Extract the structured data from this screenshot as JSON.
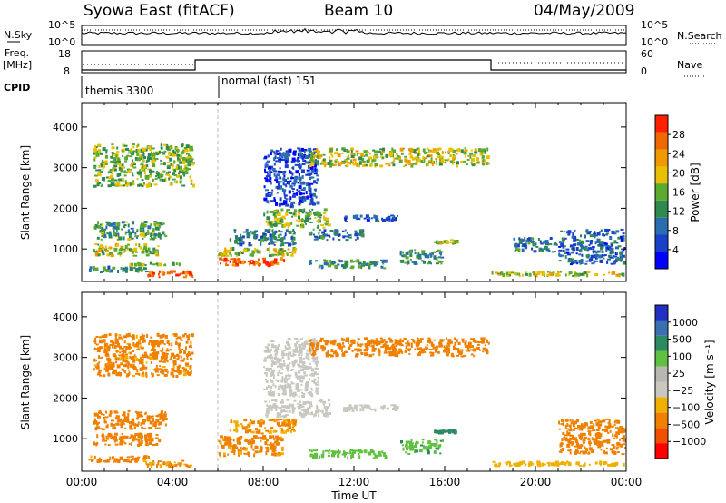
{
  "header": {
    "station": "Syowa East (fitACF)",
    "beam": "Beam 10",
    "date": "04/May/2009"
  },
  "strip_labels": {
    "nsky": "N.Sky",
    "nsky_top": "10^5",
    "nsky_bottom": "10^0",
    "nsearch": "N.Search",
    "nsearch_top": "10^5",
    "nsearch_bottom": "10^0",
    "freq_line1": "Freq.",
    "freq_line2": "[MHz]",
    "freq_top": "18",
    "freq_bottom": "8",
    "nave": "Nave",
    "nave_top": "60",
    "nave_bottom": "0",
    "cpid": "CPID"
  },
  "cpid_segments": [
    {
      "label": "themis 3300",
      "start_h": 0,
      "end_h": 6
    },
    {
      "label": "normal (fast) 151",
      "start_h": 6,
      "end_h": 24
    }
  ],
  "chart_data": [
    {
      "type": "heatmap",
      "panel": "power",
      "ylabel": "Slant Range [km]",
      "xlabel": "Time UT",
      "xlim": [
        0,
        24
      ],
      "ylim": [
        200,
        4600
      ],
      "xticks": [
        "00:00",
        "04:00",
        "08:00",
        "12:00",
        "16:00",
        "20:00",
        "00:00"
      ],
      "yticks": [
        1000,
        2000,
        3000,
        4000
      ],
      "colorbar": {
        "label": "Power [dB]",
        "ticks": [
          "28",
          "24",
          "20",
          "16",
          "12",
          "8",
          "4"
        ],
        "colors": [
          "#0000ff",
          "#1840c8",
          "#2a6cb0",
          "#2f8a4f",
          "#5aaa30",
          "#e8c000",
          "#f09a00",
          "#f06800",
          "#ff2000"
        ]
      },
      "echo_regions": [
        {
          "t0": 0.5,
          "t1": 3.8,
          "r0": 1200,
          "r1": 1700,
          "value": 14
        },
        {
          "t0": 0.5,
          "t1": 3.5,
          "r0": 800,
          "r1": 1150,
          "value": 18
        },
        {
          "t0": 0.3,
          "t1": 3.0,
          "r0": 400,
          "r1": 600,
          "value": 12
        },
        {
          "t0": 2.8,
          "t1": 5.0,
          "r0": 280,
          "r1": 480,
          "value": 28
        },
        {
          "t0": 2.0,
          "t1": 4.5,
          "r0": 560,
          "r1": 680,
          "value": 16
        },
        {
          "t0": 6.0,
          "t1": 9.0,
          "r0": 550,
          "r1": 800,
          "value": 28
        },
        {
          "t0": 6.0,
          "t1": 9.5,
          "r0": 800,
          "r1": 1050,
          "value": 18
        },
        {
          "t0": 6.5,
          "t1": 9.5,
          "r0": 1050,
          "r1": 1500,
          "value": 10
        },
        {
          "t0": 8.0,
          "t1": 11.0,
          "r0": 1500,
          "r1": 2000,
          "value": 16
        },
        {
          "t0": 8.0,
          "t1": 10.5,
          "r0": 2000,
          "r1": 3500,
          "value": 6
        },
        {
          "t0": 11.5,
          "t1": 14.0,
          "r0": 1650,
          "r1": 1850,
          "value": 8
        },
        {
          "t0": 10.0,
          "t1": 12.5,
          "r0": 1200,
          "r1": 1500,
          "value": 10
        },
        {
          "t0": 10.0,
          "t1": 13.5,
          "r0": 500,
          "r1": 750,
          "value": 12
        },
        {
          "t0": 14.0,
          "t1": 16.0,
          "r0": 600,
          "r1": 1000,
          "value": 12
        },
        {
          "t0": 15.5,
          "t1": 16.7,
          "r0": 1100,
          "r1": 1250,
          "value": 18
        },
        {
          "t0": 18.0,
          "t1": 24.0,
          "r0": 300,
          "r1": 460,
          "value": 18
        },
        {
          "t0": 19.0,
          "t1": 21.0,
          "r0": 900,
          "r1": 1300,
          "value": 10
        },
        {
          "t0": 21.0,
          "t1": 24.0,
          "r0": 600,
          "r1": 1500,
          "value": 8
        },
        {
          "t0": 10.0,
          "t1": 18.0,
          "r0": 3000,
          "r1": 3500,
          "value": 18
        },
        {
          "t0": 0.5,
          "t1": 5.0,
          "r0": 2500,
          "r1": 3600,
          "value": 16
        }
      ]
    },
    {
      "type": "heatmap",
      "panel": "velocity",
      "ylabel": "Slant Range [km]",
      "xlabel": "Time UT",
      "xlim": [
        0,
        24
      ],
      "ylim": [
        200,
        4600
      ],
      "xticks": [
        "00:00",
        "04:00",
        "08:00",
        "12:00",
        "16:00",
        "20:00",
        "00:00"
      ],
      "yticks": [
        1000,
        2000,
        3000,
        4000
      ],
      "colorbar": {
        "label": "Velocity [m s⁻¹]",
        "ticks": [
          "1000",
          "500",
          "100",
          "25",
          "−25",
          "−100",
          "−500",
          "−1000"
        ],
        "colors": [
          "#ff0000",
          "#f05000",
          "#f08000",
          "#f0b000",
          "#c8c8c0",
          "#b8b8b0",
          "#60c040",
          "#2a8a60",
          "#3a70b0",
          "#2030c0"
        ]
      },
      "echo_regions": [
        {
          "t0": 0.5,
          "t1": 3.8,
          "r0": 1200,
          "r1": 1700,
          "value": -200
        },
        {
          "t0": 0.5,
          "t1": 3.5,
          "r0": 800,
          "r1": 1150,
          "value": -300
        },
        {
          "t0": 0.3,
          "t1": 3.0,
          "r0": 400,
          "r1": 600,
          "value": -150
        },
        {
          "t0": 2.8,
          "t1": 5.0,
          "r0": 280,
          "r1": 480,
          "value": -120
        },
        {
          "t0": 6.0,
          "t1": 9.0,
          "r0": 550,
          "r1": 1100,
          "value": -150
        },
        {
          "t0": 6.5,
          "t1": 9.5,
          "r0": 1100,
          "r1": 1500,
          "value": -110
        },
        {
          "t0": 8.0,
          "t1": 11.0,
          "r0": 1500,
          "r1": 2000,
          "value": 0
        },
        {
          "t0": 8.0,
          "t1": 10.5,
          "r0": 2000,
          "r1": 3500,
          "value": 0
        },
        {
          "t0": 11.5,
          "t1": 14.0,
          "r0": 1650,
          "r1": 1850,
          "value": 0
        },
        {
          "t0": 10.0,
          "t1": 13.5,
          "r0": 500,
          "r1": 750,
          "value": 60
        },
        {
          "t0": 14.0,
          "t1": 16.0,
          "r0": 600,
          "r1": 1000,
          "value": 80
        },
        {
          "t0": 15.5,
          "t1": 16.7,
          "r0": 1100,
          "r1": 1250,
          "value": 300
        },
        {
          "t0": 18.0,
          "t1": 24.0,
          "r0": 300,
          "r1": 460,
          "value": -60
        },
        {
          "t0": 21.0,
          "t1": 24.0,
          "r0": 600,
          "r1": 1500,
          "value": -200
        },
        {
          "t0": 10.0,
          "t1": 18.0,
          "r0": 3000,
          "r1": 3500,
          "value": -300
        },
        {
          "t0": 0.5,
          "t1": 5.0,
          "r0": 2500,
          "r1": 3600,
          "value": -150
        }
      ]
    }
  ]
}
